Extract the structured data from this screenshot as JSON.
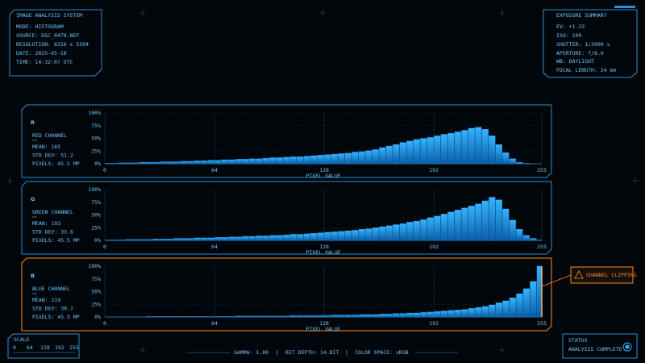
{
  "header": {
    "title": "IMAGE ANALYSIS SYSTEM",
    "lines": [
      "MODE: HISTOGRAM",
      "SOURCE: DSC_0478.NEF",
      "RESOLUTION: 8256 x 5504",
      "DATE: 2025-05-18",
      "TIME: 14:32:07 UTC"
    ]
  },
  "exposure": {
    "title": "EXPOSURE SUMMARY",
    "lines": [
      "EV: +1.33",
      "ISO: 100",
      "SHUTTER: 1/2000 s",
      "APERTURE: f/8.0",
      "WB: DAYLIGHT",
      "FOCAL LENGTH: 24 mm"
    ]
  },
  "scale": {
    "title": "SCALE",
    "labels": [
      "0",
      "64",
      "128",
      "192",
      "255"
    ]
  },
  "footer": {
    "items": [
      "GAMMA: 1.00",
      "BIT DEPTH: 14-BIT",
      "COLOR SPACE: sRGB"
    ],
    "separator": "|"
  },
  "status": {
    "title": "STATUS",
    "text": "ANALYSIS COMPLETE"
  },
  "chart_data": [
    {
      "type": "histogram",
      "letter": "R",
      "title": "RED CHANNEL",
      "stats": [
        "MEAN: 165",
        "STD DEV: 51.2",
        "PIXELS: 45.5 MP"
      ],
      "xlabel": "PIXEL VALUE",
      "color": "#1e9bff",
      "border_color": "#2a8fd6",
      "bins": [
        0,
        4,
        8,
        12,
        16,
        20,
        24,
        28,
        32,
        36,
        40,
        44,
        48,
        52,
        56,
        60,
        64,
        68,
        72,
        76,
        80,
        84,
        88,
        92,
        96,
        100,
        104,
        108,
        112,
        116,
        120,
        124,
        128,
        132,
        136,
        140,
        144,
        148,
        152,
        156,
        160,
        164,
        168,
        172,
        176,
        180,
        184,
        188,
        192,
        196,
        200,
        204,
        208,
        212,
        216,
        220,
        224,
        228,
        232,
        236,
        240,
        244,
        248,
        252,
        255
      ],
      "values": [
        1,
        1,
        2,
        2,
        2,
        3,
        3,
        3,
        4,
        4,
        4,
        5,
        5,
        6,
        6,
        7,
        7,
        8,
        8,
        9,
        9,
        10,
        10,
        11,
        12,
        12,
        13,
        14,
        14,
        15,
        16,
        17,
        18,
        19,
        20,
        21,
        23,
        24,
        26,
        28,
        32,
        35,
        38,
        42,
        45,
        48,
        50,
        52,
        55,
        58,
        60,
        63,
        66,
        70,
        72,
        68,
        55,
        38,
        22,
        10,
        3,
        1,
        0,
        0
      ],
      "xlim": [
        0,
        255
      ],
      "xticks": [
        0,
        64,
        128,
        192,
        255
      ],
      "ylim": [
        0,
        100
      ],
      "yticks": [
        {
          "value": 0,
          "label": "0%"
        },
        {
          "value": 25,
          "label": "25%"
        },
        {
          "value": 50,
          "label": "50%"
        },
        {
          "value": 75,
          "label": "75%"
        },
        {
          "value": 100,
          "label": "100%"
        }
      ],
      "grid": true
    },
    {
      "type": "histogram",
      "letter": "G",
      "title": "GREEN CHANNEL",
      "stats": [
        "MEAN: 193",
        "STD DEV: 33.6",
        "PIXELS: 45.5 MP"
      ],
      "xlabel": "PIXEL VALUE",
      "color": "#1e9bff",
      "border_color": "#2a8fd6",
      "bins": [
        0,
        4,
        8,
        12,
        16,
        20,
        24,
        28,
        32,
        36,
        40,
        44,
        48,
        52,
        56,
        60,
        64,
        68,
        72,
        76,
        80,
        84,
        88,
        92,
        96,
        100,
        104,
        108,
        112,
        116,
        120,
        124,
        128,
        132,
        136,
        140,
        144,
        148,
        152,
        156,
        160,
        164,
        168,
        172,
        176,
        180,
        184,
        188,
        192,
        196,
        200,
        204,
        208,
        212,
        216,
        220,
        224,
        228,
        232,
        236,
        240,
        244,
        248,
        252,
        255
      ],
      "values": [
        1,
        1,
        1,
        2,
        2,
        2,
        2,
        3,
        3,
        3,
        4,
        4,
        4,
        5,
        5,
        5,
        6,
        6,
        7,
        7,
        8,
        8,
        9,
        9,
        10,
        10,
        11,
        12,
        12,
        13,
        14,
        15,
        16,
        17,
        18,
        19,
        20,
        22,
        23,
        25,
        27,
        29,
        31,
        33,
        36,
        38,
        41,
        45,
        48,
        52,
        56,
        60,
        64,
        68,
        72,
        78,
        85,
        80,
        62,
        40,
        22,
        10,
        4,
        1
      ],
      "xlim": [
        0,
        255
      ],
      "xticks": [
        0,
        64,
        128,
        192,
        255
      ],
      "ylim": [
        0,
        100
      ],
      "yticks": [
        {
          "value": 0,
          "label": "0%"
        },
        {
          "value": 25,
          "label": "25%"
        },
        {
          "value": 50,
          "label": "50%"
        },
        {
          "value": 75,
          "label": "75%"
        },
        {
          "value": 100,
          "label": "100%"
        }
      ],
      "grid": true
    },
    {
      "type": "histogram",
      "letter": "B",
      "title": "BLUE CHANNEL",
      "stats": [
        "MEAN: 219",
        "STD DEV: 30.7",
        "PIXELS: 45.5 MP"
      ],
      "xlabel": "PIXEL VALUE",
      "color": "#1e9bff",
      "border_color": "#ff8a1e",
      "annotation": "CHANNEL CLIPPING",
      "bins": [
        0,
        4,
        8,
        12,
        16,
        20,
        24,
        28,
        32,
        36,
        40,
        44,
        48,
        52,
        56,
        60,
        64,
        68,
        72,
        76,
        80,
        84,
        88,
        92,
        96,
        100,
        104,
        108,
        112,
        116,
        120,
        124,
        128,
        132,
        136,
        140,
        144,
        148,
        152,
        156,
        160,
        164,
        168,
        172,
        176,
        180,
        184,
        188,
        192,
        196,
        200,
        204,
        208,
        212,
        216,
        220,
        224,
        228,
        232,
        236,
        240,
        244,
        248,
        252,
        255
      ],
      "values": [
        0,
        0,
        0,
        0,
        0,
        0,
        1,
        1,
        1,
        1,
        1,
        1,
        1,
        1,
        1,
        1,
        1,
        1,
        1,
        2,
        2,
        2,
        2,
        2,
        2,
        2,
        2,
        3,
        3,
        3,
        3,
        3,
        3,
        4,
        4,
        4,
        4,
        5,
        5,
        5,
        6,
        6,
        7,
        7,
        8,
        8,
        9,
        10,
        11,
        12,
        13,
        14,
        15,
        17,
        19,
        21,
        24,
        28,
        32,
        38,
        46,
        56,
        70,
        100
      ],
      "xlim": [
        0,
        255
      ],
      "xticks": [
        0,
        64,
        128,
        192,
        255
      ],
      "ylim": [
        0,
        100
      ],
      "yticks": [
        {
          "value": 0,
          "label": "0%"
        },
        {
          "value": 25,
          "label": "25%"
        },
        {
          "value": 50,
          "label": "50%"
        },
        {
          "value": 75,
          "label": "75%"
        },
        {
          "value": 100,
          "label": "100%"
        }
      ],
      "grid": true
    }
  ]
}
